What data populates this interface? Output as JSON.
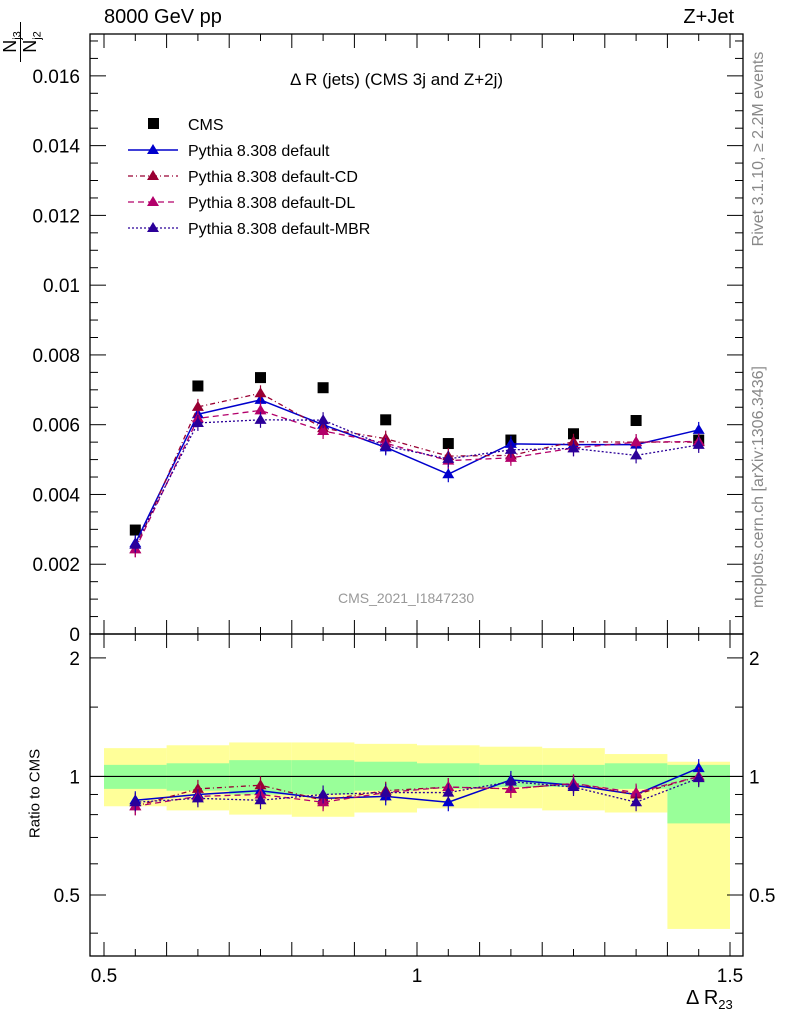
{
  "header": {
    "left": "8000 GeV pp",
    "right": "Z+Jet"
  },
  "side_texts": {
    "rivet": "Rivet 3.1.10, ≥ 2.2M events",
    "mcplots": "mcplots.cern.ch [arXiv:1306.3436]"
  },
  "watermark": "CMS_2021_I1847230",
  "colors": {
    "data": "#000000",
    "default": "#0000cc",
    "cd": "#990033",
    "dl": "#b3006b",
    "mbr": "#2b0099",
    "band_inner": "#99ff99",
    "band_outer": "#ffff99"
  },
  "chart_data": [
    {
      "type": "line",
      "title": "Δ R (jets) (CMS 3j and Z+2j)",
      "ylabel_num": "N",
      "ylabel_num_sub": "j3",
      "ylabel_den": "N",
      "ylabel_den_sub": "j2",
      "ylim": [
        0,
        0.0172
      ],
      "yticks": [
        "0",
        "0.002",
        "0.004",
        "0.006",
        "0.008",
        "0.01",
        "0.012",
        "0.014",
        "0.016"
      ],
      "legend_position": "top-left",
      "x": [
        0.55,
        0.65,
        0.75,
        0.85,
        0.95,
        1.05,
        1.15,
        1.25,
        1.35,
        1.45
      ],
      "series": [
        {
          "name": "CMS",
          "style": "data",
          "values": [
            0.00298,
            0.00711,
            0.00735,
            0.00706,
            0.00614,
            0.00546,
            0.00556,
            0.00574,
            0.00612,
            0.00556
          ]
        },
        {
          "name": "Pythia 8.308 default",
          "style": "default",
          "values": [
            0.0026,
            0.0063,
            0.00671,
            0.006,
            0.00535,
            0.00458,
            0.00545,
            0.00543,
            0.00543,
            0.00585
          ]
        },
        {
          "name": "Pythia 8.308 default-CD",
          "style": "cd",
          "values": [
            0.00243,
            0.00651,
            0.0069,
            0.0059,
            0.0056,
            0.0051,
            0.00512,
            0.00551,
            0.0055,
            0.0055
          ]
        },
        {
          "name": "Pythia 8.308 default-DL",
          "style": "dl",
          "values": [
            0.00243,
            0.00618,
            0.00641,
            0.00582,
            0.00547,
            0.00497,
            0.00505,
            0.00533,
            0.0055,
            0.00552
          ]
        },
        {
          "name": "Pythia 8.308 default-MBR",
          "style": "mbr",
          "values": [
            0.00256,
            0.00605,
            0.00614,
            0.00613,
            0.00539,
            0.00502,
            0.00528,
            0.00532,
            0.00512,
            0.00542
          ]
        }
      ]
    },
    {
      "type": "line",
      "ylabel": "Ratio to CMS",
      "xlabel": "Δ R",
      "xlabel_sub": "23",
      "xlim": [
        0.5,
        1.5
      ],
      "ylim": [
        0.35,
        2.3
      ],
      "xticks": [
        "0.5",
        "1",
        "1.5"
      ],
      "yticks": [
        "0.5",
        "1",
        "2"
      ],
      "x_edges": [
        0.5,
        0.6,
        0.7,
        0.8,
        0.9,
        1.0,
        1.1,
        1.2,
        1.3,
        1.4,
        1.5
      ],
      "band_inner": [
        [
          0.93,
          1.07
        ],
        [
          0.92,
          1.08
        ],
        [
          0.9,
          1.1
        ],
        [
          0.9,
          1.1
        ],
        [
          0.92,
          1.09
        ],
        [
          0.93,
          1.08
        ],
        [
          0.94,
          1.07
        ],
        [
          0.94,
          1.07
        ],
        [
          0.93,
          1.08
        ],
        [
          0.76,
          1.07
        ]
      ],
      "band_outer": [
        [
          0.84,
          1.18
        ],
        [
          0.82,
          1.2
        ],
        [
          0.8,
          1.22
        ],
        [
          0.79,
          1.22
        ],
        [
          0.81,
          1.21
        ],
        [
          0.83,
          1.2
        ],
        [
          0.83,
          1.19
        ],
        [
          0.82,
          1.18
        ],
        [
          0.81,
          1.14
        ],
        [
          0.41,
          1.09
        ]
      ],
      "series": [
        {
          "name": "Pythia 8.308 default",
          "style": "default",
          "values": [
            0.87,
            0.9,
            0.92,
            0.88,
            0.89,
            0.86,
            0.98,
            0.95,
            0.9,
            1.05
          ]
        },
        {
          "name": "Pythia 8.308 default-CD",
          "style": "cd",
          "values": [
            0.84,
            0.93,
            0.95,
            0.87,
            0.92,
            0.94,
            0.93,
            0.96,
            0.9,
            1.0
          ]
        },
        {
          "name": "Pythia 8.308 default-DL",
          "style": "dl",
          "values": [
            0.84,
            0.89,
            0.9,
            0.86,
            0.91,
            0.94,
            0.93,
            0.96,
            0.91,
            1.0
          ]
        },
        {
          "name": "Pythia 8.308 default-MBR",
          "style": "mbr",
          "values": [
            0.86,
            0.88,
            0.87,
            0.9,
            0.91,
            0.91,
            0.97,
            0.94,
            0.86,
            0.99
          ]
        }
      ]
    }
  ]
}
